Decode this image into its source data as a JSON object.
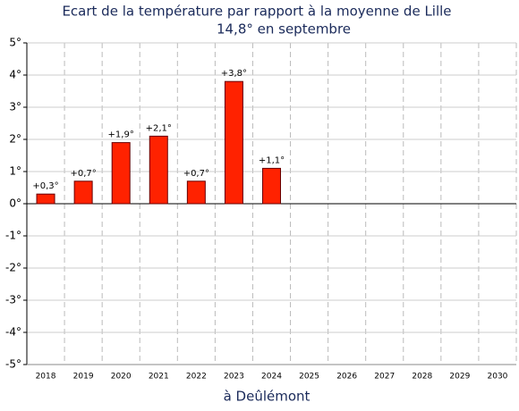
{
  "chart_data": {
    "type": "bar",
    "title": "Ecart de la température par rapport à la moyenne de Lille",
    "subtitle": "14,8° en septembre",
    "x_label": "à Deûlémont",
    "categories": [
      "2018",
      "2019",
      "2020",
      "2021",
      "2022",
      "2023",
      "2024",
      "2025",
      "2026",
      "2027",
      "2028",
      "2029",
      "2030"
    ],
    "values": [
      0.3,
      0.7,
      1.9,
      2.1,
      0.7,
      3.8,
      1.1,
      null,
      null,
      null,
      null,
      null,
      null
    ],
    "value_labels": [
      "+0,3°",
      "+0,7°",
      "+1,9°",
      "+2,1°",
      "+0,7°",
      "+3,8°",
      "+1,1°",
      null,
      null,
      null,
      null,
      null,
      null
    ],
    "color": "#ff2200",
    "ylim": [
      -5,
      5
    ],
    "yticks": [
      {
        "value": 5,
        "label": "5°"
      },
      {
        "value": 4,
        "label": "4°"
      },
      {
        "value": 3,
        "label": "3°"
      },
      {
        "value": 2,
        "label": "2°"
      },
      {
        "value": 1,
        "label": "1°"
      },
      {
        "value": 0,
        "label": "0°"
      },
      {
        "value": -1,
        "label": "-1°"
      },
      {
        "value": -2,
        "label": "-2°"
      },
      {
        "value": -3,
        "label": "-3°"
      },
      {
        "value": -4,
        "label": "-4°"
      },
      {
        "value": -5,
        "label": "-5°"
      }
    ],
    "grid": true
  }
}
